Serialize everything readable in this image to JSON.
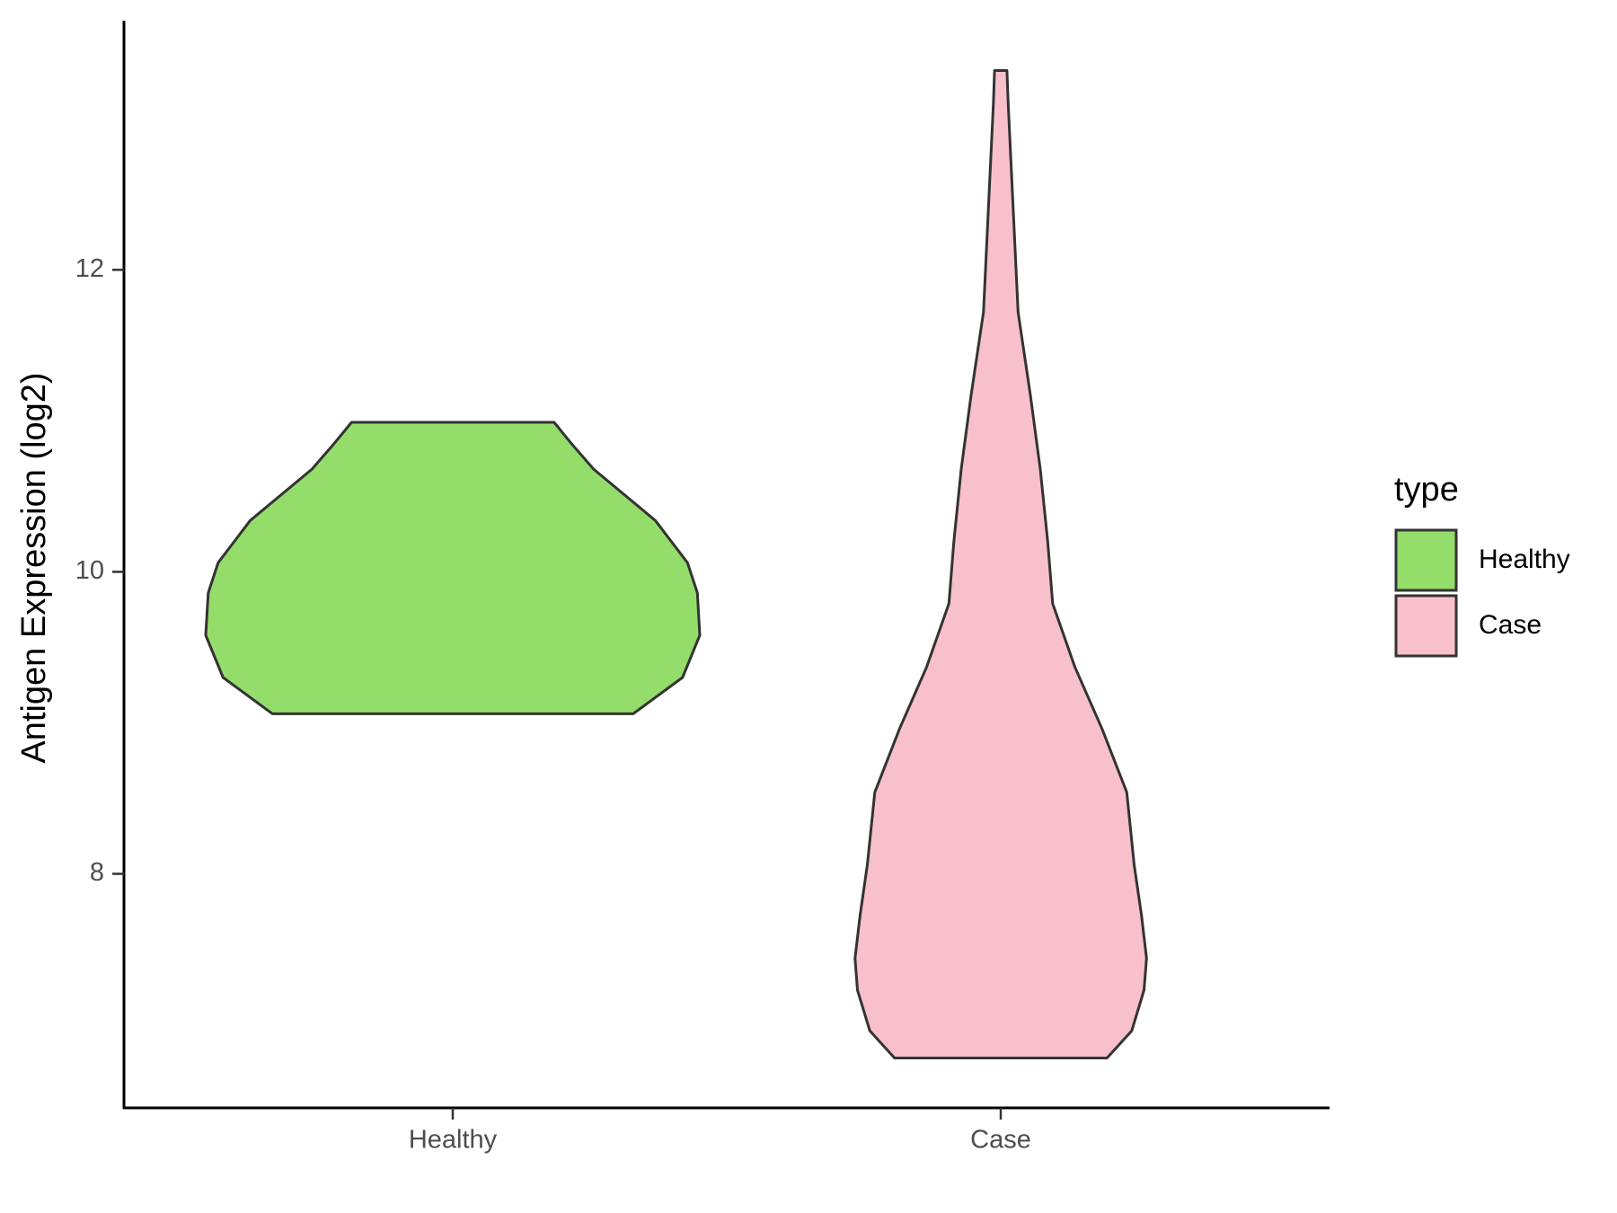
{
  "chart_data": {
    "type": "violin",
    "ylabel": "Antigen Expression (log2)",
    "categories": [
      "Healthy",
      "Case"
    ],
    "ylim": [
      6.45,
      13.65
    ],
    "yticks": [
      8,
      10,
      12
    ],
    "legend_title": "type",
    "legend": "right",
    "series": [
      {
        "name": "Healthy",
        "color": "#95dd6a",
        "y": [
          9.06,
          9.3,
          9.58,
          9.86,
          10.06,
          10.34,
          10.68,
          10.85,
          10.99
        ],
        "density": [
          0.73,
          0.93,
          1.0,
          0.99,
          0.95,
          0.82,
          0.57,
          0.48,
          0.41
        ]
      },
      {
        "name": "Case",
        "color": "#f8c0cb",
        "y": [
          6.78,
          6.96,
          7.23,
          7.44,
          7.72,
          8.06,
          8.54,
          8.96,
          9.37,
          9.79,
          10.2,
          10.68,
          11.17,
          11.72,
          12.41,
          13.1,
          13.32
        ],
        "density": [
          0.43,
          0.53,
          0.58,
          0.59,
          0.57,
          0.54,
          0.51,
          0.41,
          0.3,
          0.21,
          0.19,
          0.16,
          0.12,
          0.07,
          0.05,
          0.03,
          0.025
        ]
      }
    ]
  }
}
